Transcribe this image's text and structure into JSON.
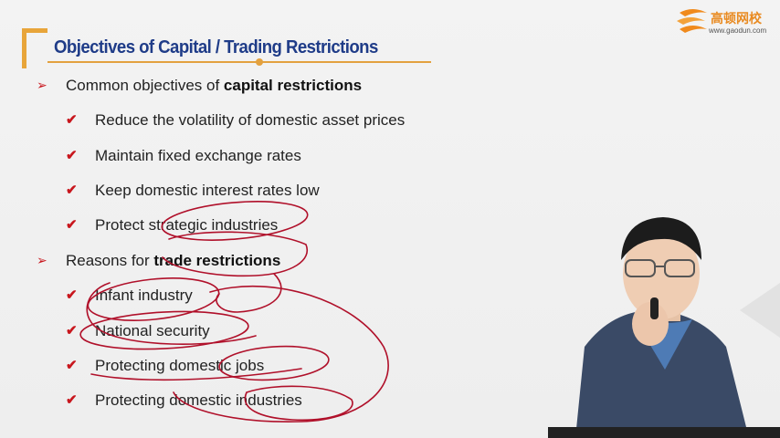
{
  "slide": {
    "title": "Objectives of Capital / Trading Restrictions",
    "logo": {
      "name": "高顿网校",
      "url": "www.gaodun.com"
    },
    "section1": {
      "prefix": "Common objectives of ",
      "bold": "capital restrictions",
      "items": [
        "Reduce the volatility of domestic asset prices",
        "Maintain fixed exchange rates",
        "Keep domestic interest rates low",
        "Protect strategic industries"
      ]
    },
    "section2": {
      "prefix": "Reasons for ",
      "bold": "trade restrictions",
      "items": [
        "Infant industry",
        "National security",
        "Protecting domestic jobs",
        "Protecting domestic industries"
      ]
    },
    "colors": {
      "title": "#1f3c88",
      "accent": "#e8a53a",
      "bullet_red": "#c8161d",
      "ink_red": "#b0102a"
    },
    "icons": {
      "arrow": "➢",
      "check": "✔"
    }
  }
}
